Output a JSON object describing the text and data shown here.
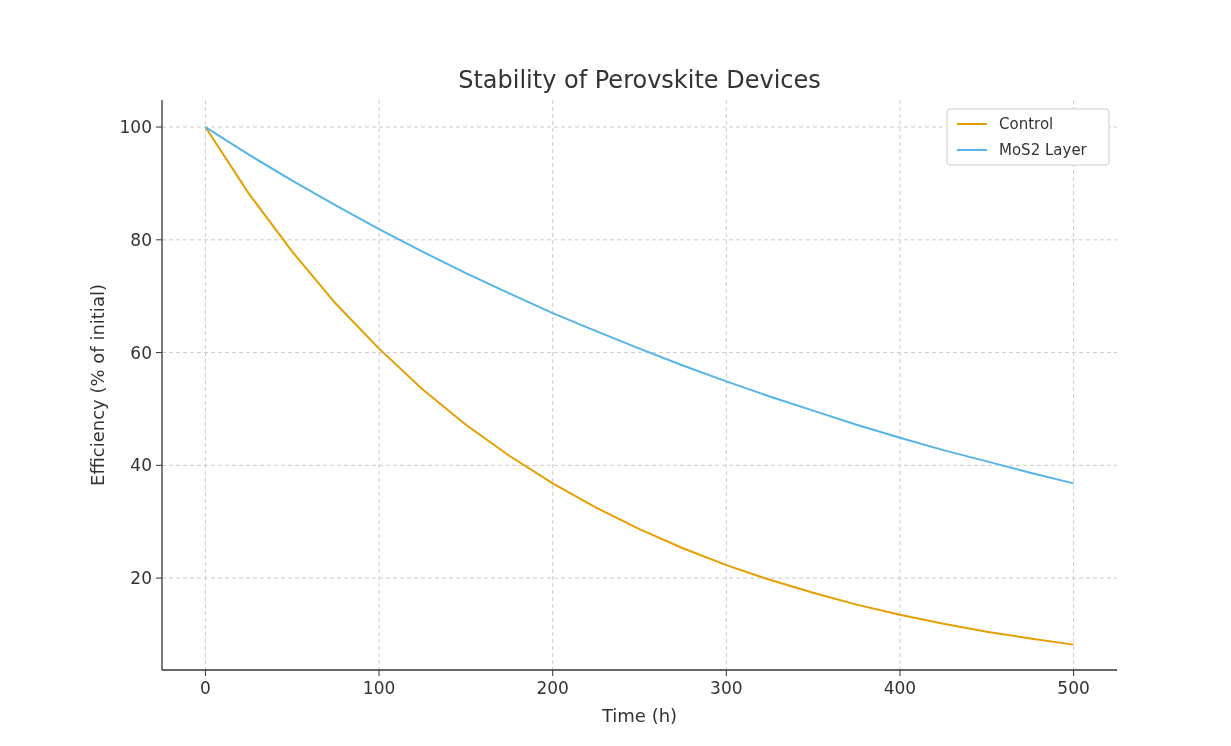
{
  "chart_data": {
    "type": "line",
    "title": "Stability of Perovskite Devices",
    "xlabel": "Time (h)",
    "ylabel": "Efficiency (% of initial)",
    "x": [
      0,
      25,
      50,
      75,
      100,
      125,
      150,
      175,
      200,
      225,
      250,
      275,
      300,
      325,
      350,
      375,
      400,
      425,
      450,
      475,
      500
    ],
    "series": [
      {
        "name": "Control",
        "color": "#e69f00",
        "values": [
          100,
          88.2,
          77.9,
          68.7,
          60.7,
          53.5,
          47.2,
          41.7,
          36.8,
          32.5,
          28.7,
          25.3,
          22.3,
          19.7,
          17.4,
          15.3,
          13.5,
          11.9,
          10.5,
          9.3,
          8.2
        ]
      },
      {
        "name": "MoS2 Layer",
        "color": "#56b4e9",
        "values": [
          100,
          95.1,
          90.5,
          86.1,
          81.9,
          77.9,
          74.1,
          70.5,
          67.0,
          63.8,
          60.7,
          57.7,
          54.9,
          52.2,
          49.7,
          47.2,
          44.9,
          42.7,
          40.7,
          38.7,
          36.8
        ]
      }
    ],
    "xlim": [
      -25,
      525
    ],
    "ylim": [
      3.7,
      104.8
    ],
    "xticks": [
      0,
      100,
      200,
      300,
      400,
      500
    ],
    "yticks": [
      20,
      40,
      60,
      80,
      100
    ],
    "grid": true,
    "legend": "top right",
    "marker": "none",
    "line_style": "solid"
  }
}
